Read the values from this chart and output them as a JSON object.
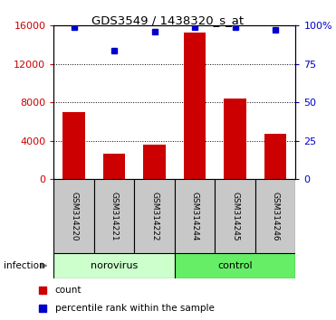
{
  "title": "GDS3549 / 1438320_s_at",
  "categories": [
    "GSM314220",
    "GSM314221",
    "GSM314222",
    "GSM314244",
    "GSM314245",
    "GSM314246"
  ],
  "bar_values": [
    7000,
    2700,
    3600,
    15300,
    8400,
    4700
  ],
  "percentile_values": [
    99,
    84,
    96,
    99,
    99,
    97
  ],
  "bar_color": "#cc0000",
  "percentile_color": "#0000cc",
  "ylim_left": [
    0,
    16000
  ],
  "ylim_right": [
    0,
    100
  ],
  "yticks_left": [
    0,
    4000,
    8000,
    12000,
    16000
  ],
  "ytick_labels_left": [
    "0",
    "4000",
    "8000",
    "12000",
    "16000"
  ],
  "yticks_right": [
    0,
    25,
    50,
    75,
    100
  ],
  "ytick_labels_right": [
    "0",
    "25",
    "50",
    "75",
    "100%"
  ],
  "group1_label": "norovirus",
  "group2_label": "control",
  "group1_color": "#ccffcc",
  "group2_color": "#66ee66",
  "infection_label": "infection",
  "legend_count_label": "count",
  "legend_pct_label": "percentile rank within the sample",
  "bg_color": "#ffffff",
  "label_box_color": "#c8c8c8",
  "figwidth": 3.71,
  "figheight": 3.54,
  "dpi": 100
}
